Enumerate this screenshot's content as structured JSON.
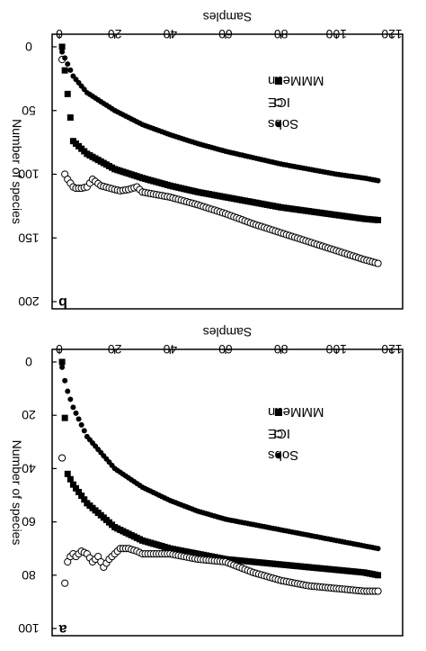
{
  "chart_data": [
    {
      "type": "scatter",
      "panel_label": "b",
      "xlabel": "Samples",
      "ylabel": "Number of species",
      "xlim": [
        0,
        120
      ],
      "ylim": [
        0,
        200
      ],
      "x_ticks": [
        "0",
        "20",
        "40",
        "60",
        "80",
        "100",
        "120"
      ],
      "y_ticks": [
        "0",
        "50",
        "100",
        "150",
        "200"
      ],
      "orientation": "rotated-180",
      "legend_position": "top-right",
      "series": [
        {
          "name": "MMMean",
          "marker": "square",
          "x": [
            1,
            5,
            10,
            20,
            30,
            40,
            50,
            60,
            70,
            80,
            90,
            100,
            110,
            115
          ],
          "values": [
            0,
            74,
            84,
            96,
            103,
            109,
            114,
            118,
            122,
            126,
            129,
            132,
            135,
            136
          ]
        },
        {
          "name": "ICE",
          "marker": "open-circle",
          "x": [
            1,
            2,
            3,
            4,
            5,
            6,
            8,
            10,
            12,
            15,
            20,
            22,
            25,
            28,
            30,
            35,
            40,
            50,
            60,
            70,
            80,
            90,
            100,
            110,
            115
          ],
          "values": [
            10,
            100,
            104,
            107,
            110,
            111,
            111,
            110,
            104,
            109,
            112,
            113,
            112,
            110,
            114,
            116,
            118,
            124,
            131,
            139,
            146,
            153,
            160,
            167,
            170
          ]
        },
        {
          "name": "Sobs",
          "marker": "filled-circle",
          "x": [
            1,
            5,
            10,
            20,
            30,
            40,
            50,
            60,
            70,
            80,
            90,
            100,
            110,
            115
          ],
          "values": [
            4,
            23,
            36,
            50,
            61,
            69,
            76,
            82,
            87,
            92,
            96,
            100,
            103,
            105
          ]
        }
      ]
    },
    {
      "type": "scatter",
      "panel_label": "a",
      "xlabel": "Samples",
      "ylabel": "Number of species",
      "xlim": [
        0,
        120
      ],
      "ylim": [
        0,
        100
      ],
      "x_ticks": [
        "0",
        "20",
        "40",
        "60",
        "80",
        "100",
        "120"
      ],
      "y_ticks": [
        "0",
        "20",
        "40",
        "60",
        "80",
        "100"
      ],
      "orientation": "rotated-180",
      "legend_position": "top-right",
      "series": [
        {
          "name": "MMMean",
          "marker": "square",
          "x": [
            1,
            3,
            5,
            10,
            20,
            30,
            40,
            50,
            60,
            70,
            80,
            90,
            100,
            110,
            115
          ],
          "values": [
            0,
            42,
            46,
            53,
            62,
            67,
            70,
            72,
            74,
            75,
            76,
            77,
            78,
            79,
            80
          ]
        },
        {
          "name": "ICE",
          "marker": "open-circle",
          "x": [
            1,
            2,
            3,
            4,
            5,
            6,
            8,
            10,
            12,
            14,
            16,
            18,
            20,
            22,
            25,
            28,
            30,
            40,
            50,
            60,
            70,
            80,
            90,
            100,
            110,
            115
          ],
          "values": [
            36,
            83,
            75,
            73,
            72,
            73,
            71,
            72,
            75,
            73,
            77,
            74,
            72,
            70,
            70,
            71,
            72,
            72,
            74,
            75,
            79,
            82,
            84,
            85,
            86,
            86
          ]
        },
        {
          "name": "Sobs",
          "marker": "filled-circle",
          "x": [
            1,
            2,
            3,
            5,
            10,
            20,
            30,
            40,
            50,
            60,
            70,
            80,
            90,
            100,
            110,
            115
          ],
          "values": [
            2,
            7,
            11,
            17,
            28,
            40,
            47,
            52,
            56,
            59,
            61,
            63,
            65,
            67,
            69,
            70
          ]
        }
      ]
    }
  ]
}
